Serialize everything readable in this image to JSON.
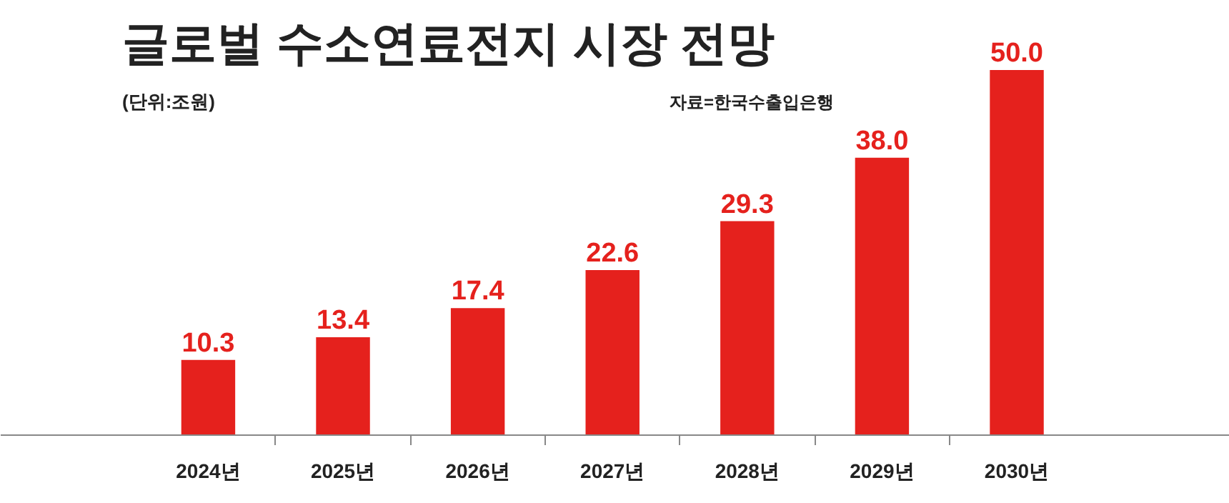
{
  "chart_data": {
    "type": "bar",
    "title": "글로벌 수소연료전지 시장 전망",
    "subtitle": "(단위:조원)",
    "annotations": [
      "자료=한국수출입은행"
    ],
    "categories": [
      "2024년",
      "2025년",
      "2026년",
      "2027년",
      "2028년",
      "2029년",
      "2030년"
    ],
    "values": [
      10.3,
      13.4,
      17.4,
      22.6,
      29.3,
      38.0,
      50.0
    ],
    "value_labels": [
      "10.3",
      "13.4",
      "17.4",
      "22.6",
      "29.3",
      "38.0",
      "50.0"
    ],
    "color": "#e5211d",
    "grid": false
  }
}
